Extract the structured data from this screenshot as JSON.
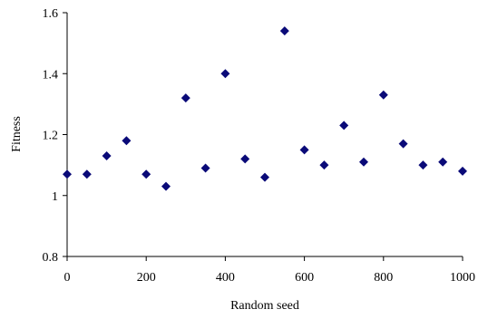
{
  "chart_data": {
    "type": "scatter",
    "title": "",
    "xlabel": "Random seed",
    "ylabel": "Fitness",
    "xlim": [
      0,
      1000
    ],
    "ylim": [
      0.8,
      1.6
    ],
    "xticks": [
      0,
      200,
      400,
      600,
      800,
      1000
    ],
    "yticks": [
      0.8,
      1,
      1.2,
      1.4,
      1.6
    ],
    "xtick_labels": [
      "0",
      "200",
      "400",
      "600",
      "800",
      "1000"
    ],
    "ytick_labels": [
      "0.8",
      "1",
      "1.2",
      "1.4",
      "1.6"
    ],
    "grid": false,
    "legend": false,
    "marker": "diamond",
    "marker_color": "#0a0a78",
    "x": [
      0,
      50,
      100,
      150,
      200,
      250,
      300,
      350,
      400,
      450,
      500,
      550,
      600,
      650,
      700,
      750,
      800,
      850,
      900,
      950,
      1000
    ],
    "y": [
      1.07,
      1.07,
      1.13,
      1.18,
      1.07,
      1.03,
      1.32,
      1.09,
      1.4,
      1.12,
      1.06,
      1.54,
      1.15,
      1.1,
      1.23,
      1.11,
      1.33,
      1.17,
      1.1,
      1.11,
      1.08
    ]
  }
}
